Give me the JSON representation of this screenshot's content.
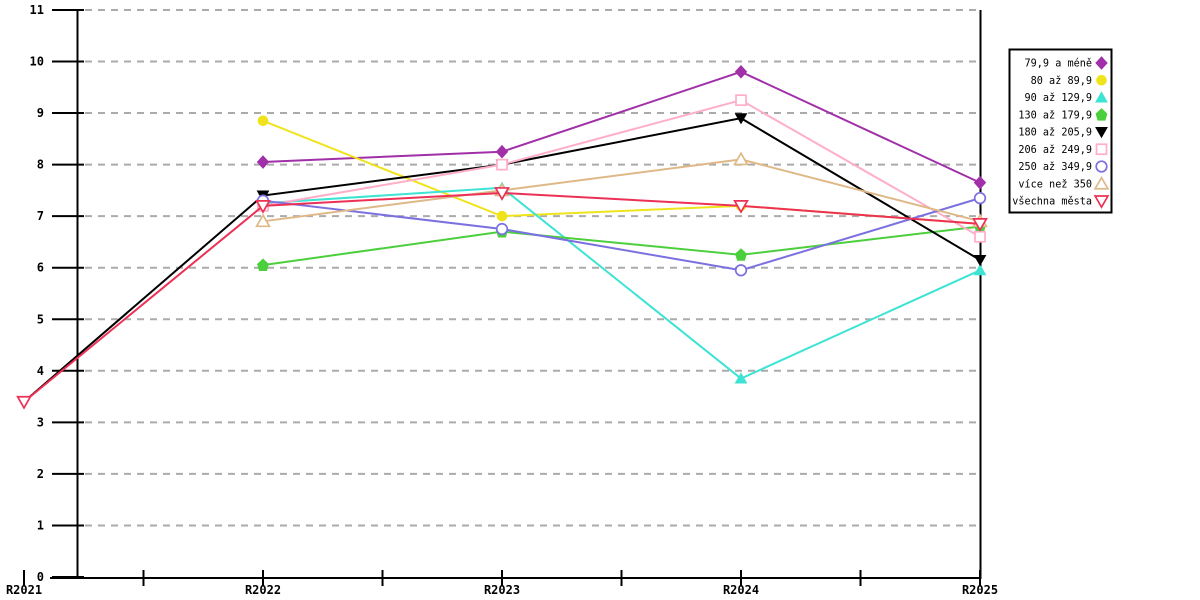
{
  "page": {
    "background_color": "#FFFFFF",
    "title": ""
  },
  "chart_data": {
    "type": "line",
    "title": "",
    "xlabel": "",
    "ylabel": "",
    "categories": [
      "R2021",
      "R2022",
      "R2023",
      "R2024",
      "R2025"
    ],
    "y_tick_labels": [
      "0",
      "1",
      "2",
      "3",
      "4",
      "5",
      "6",
      "7",
      "8",
      "9",
      "10",
      "11"
    ],
    "ylim": [
      0,
      11
    ],
    "y_tick_interval": 1,
    "grid": true,
    "grid_color": "#ABABAB",
    "axis_color": "#000000",
    "legend_position": "top-right",
    "legend_border_color": "#000000",
    "legend_background": "#FFFFFF",
    "series": [
      {
        "name": "79,9 a méně",
        "color": "#A02FA8",
        "marker": "diamond-filled",
        "values": [
          null,
          8.05,
          8.25,
          9.8,
          7.65
        ]
      },
      {
        "name": "80 až 89,9",
        "color": "#EFE41C",
        "marker": "circle-filled",
        "values": [
          null,
          8.85,
          7.0,
          7.2,
          6.85
        ]
      },
      {
        "name": "90 až 129,9",
        "color": "#3DE3D3",
        "marker": "triangle-up-filled",
        "values": [
          null,
          7.25,
          7.55,
          3.85,
          5.95
        ]
      },
      {
        "name": "130 až 179,9",
        "color": "#4CCF3C",
        "marker": "pentagon-filled",
        "values": [
          null,
          6.05,
          6.7,
          6.25,
          6.8
        ]
      },
      {
        "name": "180 až 205,9",
        "color": "#000000",
        "marker": "triangle-down-filled",
        "values": [
          3.4,
          7.4,
          8.0,
          8.9,
          6.15
        ]
      },
      {
        "name": "206 až 249,9",
        "color": "#FFAEC8",
        "marker": "square-open",
        "values": [
          null,
          7.2,
          8.0,
          9.25,
          6.6
        ]
      },
      {
        "name": "250 až 349,9",
        "color": "#7B70DF",
        "marker": "circle-open",
        "values": [
          null,
          7.3,
          6.75,
          5.95,
          7.35
        ]
      },
      {
        "name": "více než 350",
        "color": "#DEB887",
        "marker": "triangle-up-open",
        "values": [
          null,
          6.9,
          7.5,
          8.1,
          6.9
        ]
      },
      {
        "name": "všechna města",
        "color": "#EC3156",
        "marker": "triangle-down-open",
        "values": [
          3.4,
          7.2,
          7.45,
          7.2,
          6.85
        ]
      }
    ]
  }
}
